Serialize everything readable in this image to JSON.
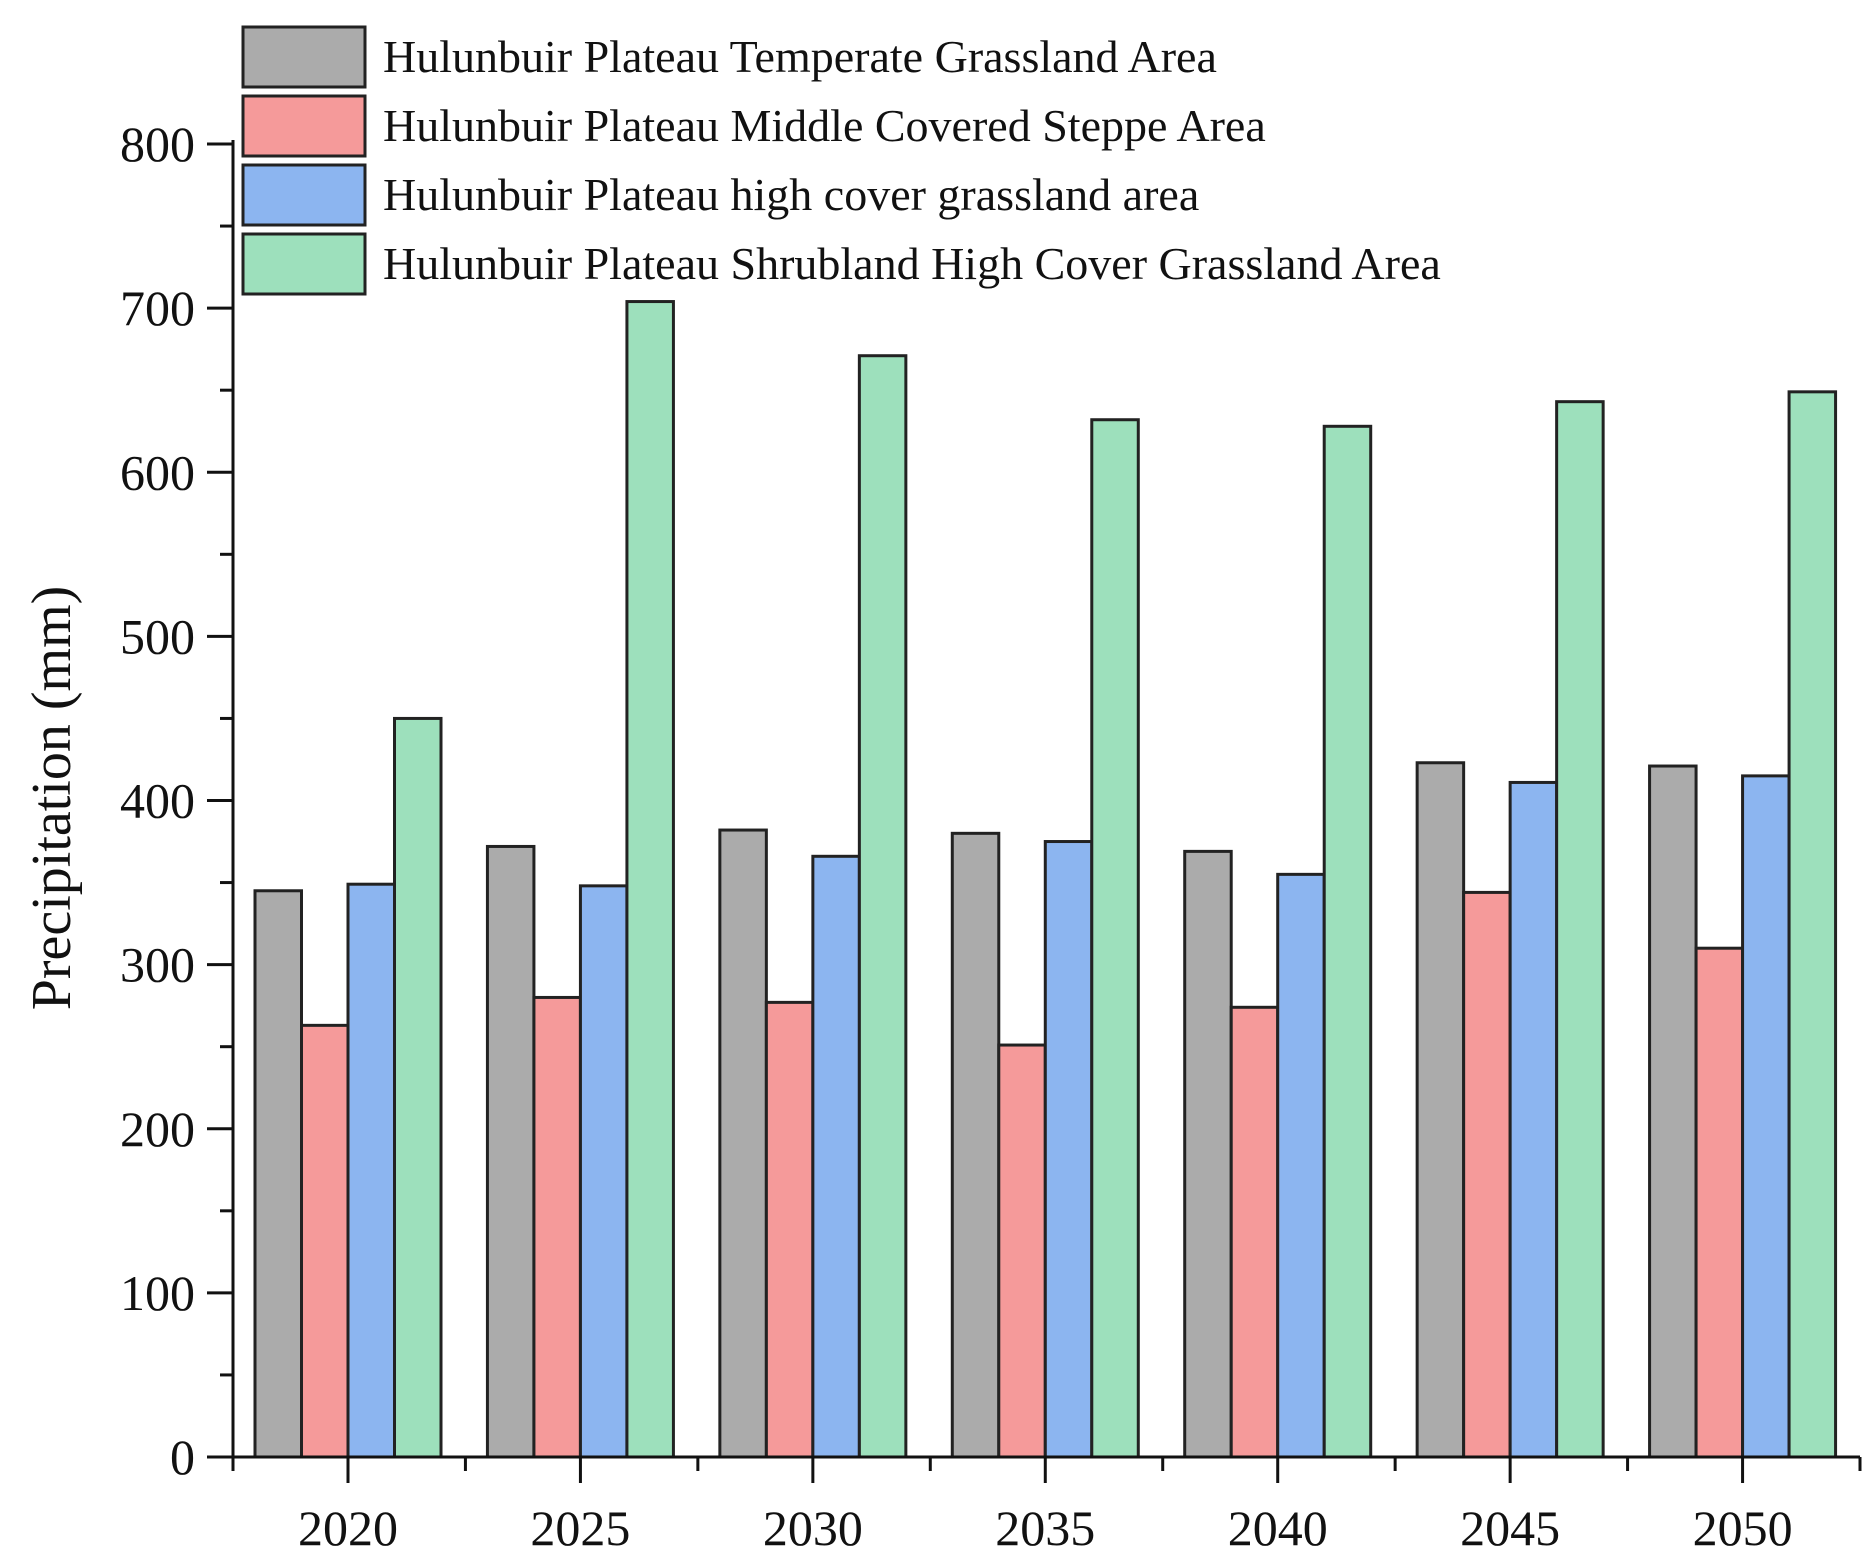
{
  "chart_data": {
    "type": "bar",
    "title": "",
    "xlabel": "",
    "ylabel": "Precipitation (mm)",
    "ylim": [
      0,
      800
    ],
    "yticks": [
      0,
      100,
      200,
      300,
      400,
      500,
      600,
      700,
      800
    ],
    "categories": [
      "2020",
      "2025",
      "2030",
      "2035",
      "2040",
      "2045",
      "2050"
    ],
    "legend_position": "top-left",
    "grid": false,
    "series": [
      {
        "name": "Hulunbuir Plateau Temperate Grassland Area",
        "color": "#ababab",
        "values": [
          345,
          372,
          382,
          380,
          369,
          423,
          421
        ]
      },
      {
        "name": "Hulunbuir Plateau Middle Covered Steppe Area",
        "color": "#f59a9a",
        "values": [
          263,
          280,
          277,
          251,
          274,
          344,
          310
        ]
      },
      {
        "name": "Hulunbuir Plateau high cover grassland area",
        "color": "#8cb5f0",
        "values": [
          349,
          348,
          366,
          375,
          355,
          411,
          415
        ]
      },
      {
        "name": "Hulunbuir Plateau Shrubland High Cover Grassland Area",
        "color": "#9de0bc",
        "values": [
          450,
          704,
          671,
          632,
          628,
          643,
          649
        ]
      }
    ]
  }
}
